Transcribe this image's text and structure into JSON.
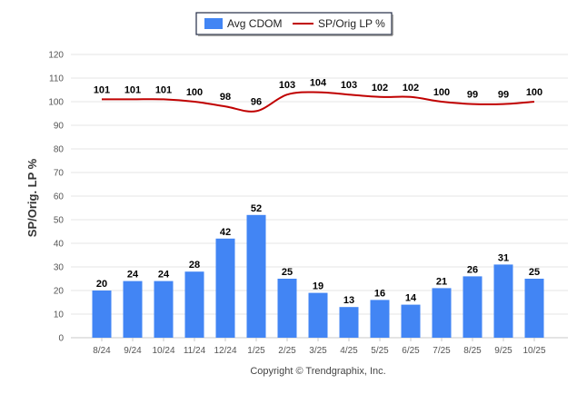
{
  "chart_data": {
    "type": "bar+line",
    "categories": [
      "8/24",
      "9/24",
      "10/24",
      "11/24",
      "12/24",
      "1/25",
      "2/25",
      "3/25",
      "4/25",
      "5/25",
      "6/25",
      "7/25",
      "8/25",
      "9/25",
      "10/25"
    ],
    "series": [
      {
        "name": "Avg CDOM",
        "type": "bar",
        "color": "#4285f4",
        "values": [
          20,
          24,
          24,
          28,
          42,
          52,
          25,
          19,
          13,
          16,
          14,
          21,
          26,
          31,
          25
        ]
      },
      {
        "name": "SP/Orig LP %",
        "type": "line",
        "color": "#c00000",
        "values": [
          101,
          101,
          101,
          100,
          98,
          96,
          103,
          104,
          103,
          102,
          102,
          100,
          99,
          99,
          100
        ]
      }
    ],
    "ylabel": "SP/Orig. LP %",
    "ylim": [
      0,
      120
    ],
    "yticks": [
      0,
      10,
      20,
      30,
      40,
      50,
      60,
      70,
      80,
      90,
      100,
      110,
      120
    ],
    "grid": true,
    "legend_position": "top-center"
  },
  "credit": "Copyright © Trendgraphix, Inc."
}
